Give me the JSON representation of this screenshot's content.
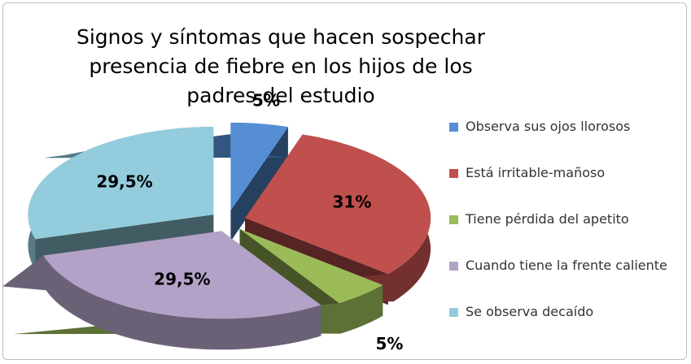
{
  "chart_data": {
    "type": "pie3d",
    "title": "Signos y síntomas que hacen sospechar presencia de fiebre en los hijos de los padres del estudio",
    "categories": [
      "Observa sus ojos llorosos",
      "Está irritable-mañoso",
      "Tiene pérdida del apetito",
      "Cuando tiene la frente caliente",
      "Se observa decaído"
    ],
    "values": [
      5,
      31,
      5,
      29.5,
      29.5
    ],
    "value_labels": [
      "5%",
      "31%",
      "5%",
      "29,5%",
      "29,5%"
    ],
    "colors": [
      "#558ed5",
      "#c0504d",
      "#9bbb59",
      "#b3a2c7",
      "#93cddd"
    ],
    "legend": "right"
  }
}
